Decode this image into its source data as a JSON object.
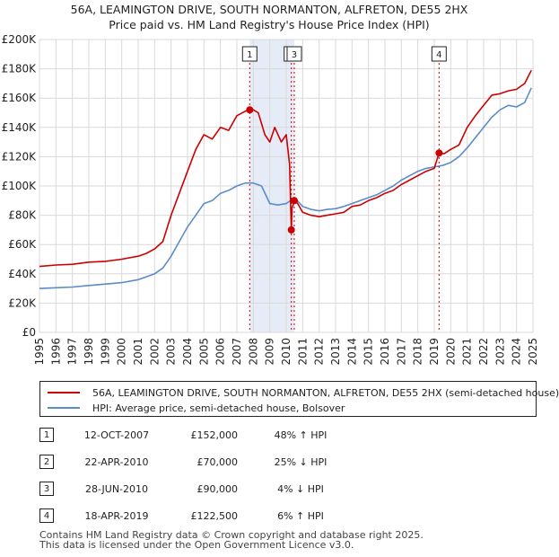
{
  "chart_data": {
    "type": "line",
    "title": "56A, LEAMINGTON DRIVE, SOUTH NORMANTON, ALFRETON, DE55 2HX",
    "subtitle": "Price paid vs. HM Land Registry's House Price Index (HPI)",
    "xlim": [
      1995,
      2025
    ],
    "ylim": [
      0,
      200000
    ],
    "x_ticks": [
      "1995",
      "1996",
      "1997",
      "1998",
      "1999",
      "2000",
      "2001",
      "2002",
      "2003",
      "2004",
      "2005",
      "2006",
      "2007",
      "2008",
      "2009",
      "2010",
      "2011",
      "2012",
      "2013",
      "2014",
      "2015",
      "2016",
      "2017",
      "2018",
      "2019",
      "2020",
      "2021",
      "2022",
      "2023",
      "2024",
      "2025"
    ],
    "x_tick_values": [
      1995,
      1996,
      1997,
      1998,
      1999,
      2000,
      2001,
      2002,
      2003,
      2004,
      2005,
      2006,
      2007,
      2008,
      2009,
      2010,
      2011,
      2012,
      2013,
      2014,
      2015,
      2016,
      2017,
      2018,
      2019,
      2020,
      2021,
      2022,
      2023,
      2024,
      2025
    ],
    "y_ticks": [
      "£0",
      "£20K",
      "£40K",
      "£60K",
      "£80K",
      "£100K",
      "£120K",
      "£140K",
      "£160K",
      "£180K",
      "£200K"
    ],
    "y_tick_values": [
      0,
      20000,
      40000,
      60000,
      80000,
      100000,
      120000,
      140000,
      160000,
      180000,
      200000
    ],
    "grid": true,
    "shaded_ranges": [
      [
        2007.78,
        2010.49
      ]
    ],
    "series": [
      {
        "name": "56A, LEAMINGTON DRIVE, SOUTH NORMANTON, ALFRETON, DE55 2HX (semi-detached house)",
        "color": "#cc0000",
        "x": [
          1995,
          1996,
          1997,
          1998,
          1999,
          2000,
          2001,
          2001.5,
          2002,
          2002.5,
          2003,
          2003.5,
          2004,
          2004.5,
          2005,
          2005.5,
          2006,
          2006.5,
          2007,
          2007.5,
          2007.78,
          2008,
          2008.3,
          2008.7,
          2009,
          2009.3,
          2009.7,
          2010,
          2010.2,
          2010.31,
          2010.35,
          2010.45,
          2010.49,
          2010.7,
          2011,
          2011.5,
          2012,
          2012.5,
          2013,
          2013.5,
          2014,
          2014.5,
          2015,
          2015.5,
          2016,
          2016.5,
          2017,
          2017.5,
          2018,
          2018.5,
          2019,
          2019.29,
          2019.6,
          2020,
          2020.5,
          2021,
          2021.5,
          2022,
          2022.5,
          2023,
          2023.5,
          2024,
          2024.5,
          2024.9
        ],
        "y": [
          45000,
          46000,
          46500,
          48000,
          48500,
          50000,
          52000,
          54000,
          57000,
          62000,
          80000,
          95000,
          110000,
          125000,
          135000,
          132000,
          140000,
          138000,
          148000,
          151000,
          152000,
          152000,
          150000,
          135000,
          130000,
          140000,
          130000,
          135000,
          115000,
          70000,
          85000,
          88000,
          90000,
          88000,
          82000,
          80000,
          79000,
          80000,
          81000,
          82000,
          86000,
          87000,
          90000,
          92000,
          95000,
          97000,
          101000,
          104000,
          107000,
          110000,
          112000,
          122500,
          122000,
          125000,
          128000,
          140000,
          148000,
          155000,
          162000,
          163000,
          165000,
          166000,
          170000,
          179000
        ]
      },
      {
        "name": "HPI: Average price, semi-detached house, Bolsover",
        "color": "#5b8cc8",
        "x": [
          1995,
          1996,
          1997,
          1998,
          1999,
          2000,
          2001,
          2001.5,
          2002,
          2002.5,
          2003,
          2003.5,
          2004,
          2004.5,
          2005,
          2005.5,
          2006,
          2006.5,
          2007,
          2007.5,
          2008,
          2008.5,
          2009,
          2009.5,
          2010,
          2010.5,
          2011,
          2011.5,
          2012,
          2012.5,
          2013,
          2013.5,
          2014,
          2014.5,
          2015,
          2015.5,
          2016,
          2016.5,
          2017,
          2017.5,
          2018,
          2018.5,
          2019,
          2019.5,
          2020,
          2020.5,
          2021,
          2021.5,
          2022,
          2022.5,
          2023,
          2023.5,
          2024,
          2024.5,
          2024.9
        ],
        "y": [
          30000,
          30500,
          31000,
          32000,
          33000,
          34000,
          36000,
          38000,
          40000,
          44000,
          52000,
          62000,
          72000,
          80000,
          88000,
          90000,
          95000,
          97000,
          100000,
          102000,
          102000,
          100000,
          88000,
          87000,
          88000,
          92000,
          86000,
          84000,
          83000,
          84000,
          84500,
          86000,
          88000,
          90000,
          92000,
          94000,
          97000,
          100000,
          104000,
          107000,
          110000,
          112000,
          113000,
          114000,
          116000,
          120000,
          126000,
          133000,
          140000,
          147000,
          152000,
          155000,
          154000,
          157000,
          167000
        ]
      }
    ],
    "sales_markers": [
      {
        "label": "1",
        "x": 2007.78,
        "y": 152000
      },
      {
        "label": "2",
        "x": 2010.31,
        "y": 70000
      },
      {
        "label": "3",
        "x": 2010.49,
        "y": 90000
      },
      {
        "label": "4",
        "x": 2019.29,
        "y": 122500
      }
    ]
  },
  "legend": {
    "items": [
      {
        "label": "56A, LEAMINGTON DRIVE, SOUTH NORMANTON, ALFRETON, DE55 2HX (semi-detached house)",
        "color": "#cc0000"
      },
      {
        "label": "HPI: Average price, semi-detached house, Bolsover",
        "color": "#5b8cc8"
      }
    ]
  },
  "sales": [
    {
      "num": "1",
      "date": "12-OCT-2007",
      "price": "£152,000",
      "hpi": "48% ↑ HPI"
    },
    {
      "num": "2",
      "date": "22-APR-2010",
      "price": "£70,000",
      "hpi": "25% ↓ HPI"
    },
    {
      "num": "3",
      "date": "28-JUN-2010",
      "price": "£90,000",
      "hpi": "4% ↓ HPI"
    },
    {
      "num": "4",
      "date": "18-APR-2019",
      "price": "£122,500",
      "hpi": "6% ↑ HPI"
    }
  ],
  "footer": {
    "line1": "Contains HM Land Registry data © Crown copyright and database right 2025.",
    "line2": "This data is licensed under the Open Government Licence v3.0."
  }
}
